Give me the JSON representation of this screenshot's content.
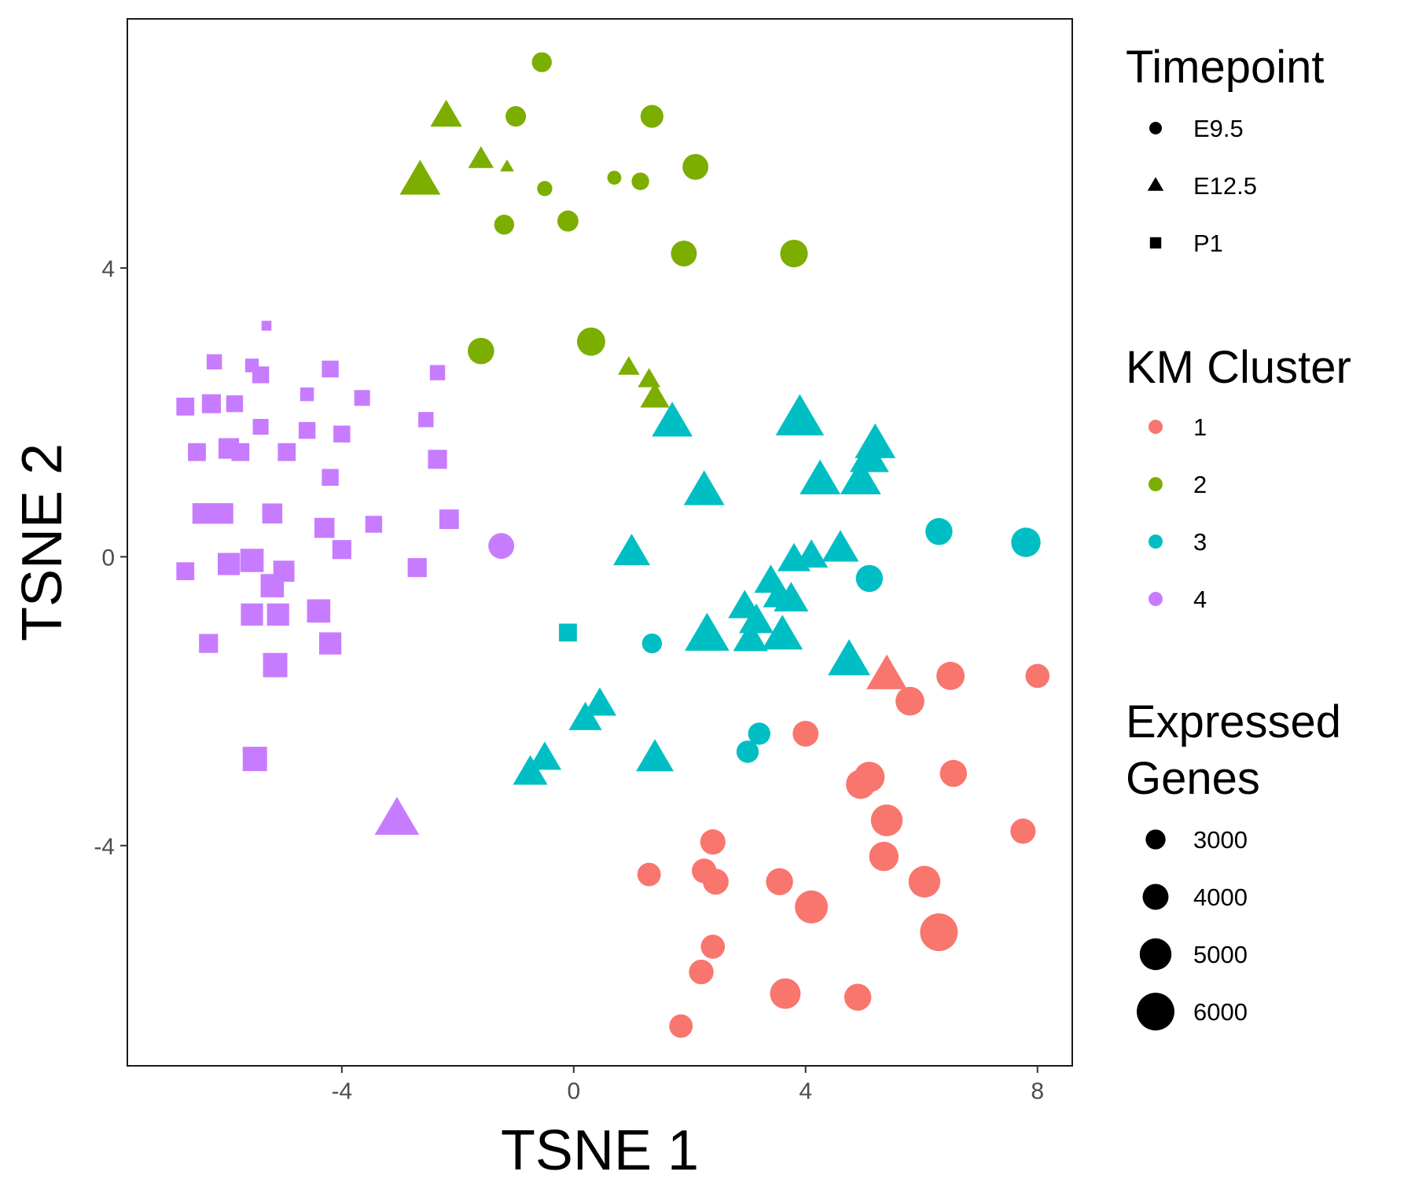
{
  "chart_data": {
    "type": "scatter",
    "title": "",
    "xlabel": "TSNE 1",
    "ylabel": "TSNE 2",
    "xlim": [
      -7.7,
      8.6
    ],
    "ylim": [
      -7.05,
      7.45
    ],
    "x_ticks": [
      -4,
      0,
      4,
      8
    ],
    "x_tick_labels": [
      "-4",
      "0",
      "4",
      "8"
    ],
    "y_ticks": [
      -4,
      0,
      4
    ],
    "y_tick_labels": [
      "-4",
      "0",
      "4"
    ],
    "grid": false,
    "legend_placement": "right",
    "legends": {
      "shape": {
        "title": "Timepoint",
        "items": [
          {
            "label": "E9.5",
            "shape": "circle"
          },
          {
            "label": "E12.5",
            "shape": "triangle"
          },
          {
            "label": "P1",
            "shape": "square"
          }
        ]
      },
      "color": {
        "title": "KM Cluster",
        "items": [
          {
            "label": "1",
            "color": "#F8766D"
          },
          {
            "label": "2",
            "color": "#7CAE00"
          },
          {
            "label": "3",
            "color": "#00BFC4"
          },
          {
            "label": "4",
            "color": "#C77CFF"
          }
        ]
      },
      "size": {
        "title_lines": [
          "Expressed",
          "Genes"
        ],
        "items": [
          {
            "label": "3000",
            "value": 3000
          },
          {
            "label": "4000",
            "value": 4000
          },
          {
            "label": "5000",
            "value": 5000
          },
          {
            "label": "6000",
            "value": 6000
          }
        ]
      }
    },
    "points": [
      {
        "x": -0.55,
        "y": 6.85,
        "cluster": "2",
        "timepoint": "E9.5",
        "genes": 3000
      },
      {
        "x": -1.0,
        "y": 6.1,
        "cluster": "2",
        "timepoint": "E9.5",
        "genes": 3100
      },
      {
        "x": 1.35,
        "y": 6.1,
        "cluster": "2",
        "timepoint": "E9.5",
        "genes": 3500
      },
      {
        "x": -2.2,
        "y": 6.1,
        "cluster": "2",
        "timepoint": "E12.5",
        "genes": 3800
      },
      {
        "x": -1.6,
        "y": 5.5,
        "cluster": "2",
        "timepoint": "E12.5",
        "genes": 3000
      },
      {
        "x": -1.15,
        "y": 5.4,
        "cluster": "2",
        "timepoint": "E12.5",
        "genes": 1500
      },
      {
        "x": -2.65,
        "y": 5.2,
        "cluster": "2",
        "timepoint": "E12.5",
        "genes": 5000
      },
      {
        "x": 2.1,
        "y": 5.4,
        "cluster": "2",
        "timepoint": "E9.5",
        "genes": 4000
      },
      {
        "x": -0.5,
        "y": 5.1,
        "cluster": "2",
        "timepoint": "E9.5",
        "genes": 2200
      },
      {
        "x": 0.7,
        "y": 5.25,
        "cluster": "2",
        "timepoint": "E9.5",
        "genes": 2000
      },
      {
        "x": 1.15,
        "y": 5.2,
        "cluster": "2",
        "timepoint": "E9.5",
        "genes": 2600
      },
      {
        "x": -1.2,
        "y": 4.6,
        "cluster": "2",
        "timepoint": "E9.5",
        "genes": 3000
      },
      {
        "x": -0.1,
        "y": 4.65,
        "cluster": "2",
        "timepoint": "E9.5",
        "genes": 3200
      },
      {
        "x": 1.9,
        "y": 4.2,
        "cluster": "2",
        "timepoint": "E9.5",
        "genes": 4000
      },
      {
        "x": 3.8,
        "y": 4.2,
        "cluster": "2",
        "timepoint": "E9.5",
        "genes": 4300
      },
      {
        "x": -1.6,
        "y": 2.85,
        "cluster": "2",
        "timepoint": "E9.5",
        "genes": 4100
      },
      {
        "x": 0.3,
        "y": 2.98,
        "cluster": "2",
        "timepoint": "E9.5",
        "genes": 4400
      },
      {
        "x": 0.95,
        "y": 2.62,
        "cluster": "2",
        "timepoint": "E12.5",
        "genes": 2500
      },
      {
        "x": 1.3,
        "y": 2.45,
        "cluster": "2",
        "timepoint": "E12.5",
        "genes": 2600
      },
      {
        "x": 1.4,
        "y": 2.2,
        "cluster": "2",
        "timepoint": "E12.5",
        "genes": 3500
      },
      {
        "x": -5.3,
        "y": 3.2,
        "cluster": "4",
        "timepoint": "P1",
        "genes": 1500
      },
      {
        "x": -6.2,
        "y": 2.7,
        "cluster": "4",
        "timepoint": "P1",
        "genes": 2500
      },
      {
        "x": -5.55,
        "y": 2.65,
        "cluster": "4",
        "timepoint": "P1",
        "genes": 2200
      },
      {
        "x": -5.4,
        "y": 2.52,
        "cluster": "4",
        "timepoint": "P1",
        "genes": 2800
      },
      {
        "x": -4.2,
        "y": 2.6,
        "cluster": "4",
        "timepoint": "P1",
        "genes": 2800
      },
      {
        "x": -2.35,
        "y": 2.55,
        "cluster": "4",
        "timepoint": "P1",
        "genes": 2500
      },
      {
        "x": -4.6,
        "y": 2.25,
        "cluster": "4",
        "timepoint": "P1",
        "genes": 2200
      },
      {
        "x": -3.65,
        "y": 2.2,
        "cluster": "4",
        "timepoint": "P1",
        "genes": 2600
      },
      {
        "x": -6.7,
        "y": 2.08,
        "cluster": "4",
        "timepoint": "P1",
        "genes": 3000
      },
      {
        "x": -6.25,
        "y": 2.12,
        "cluster": "4",
        "timepoint": "P1",
        "genes": 3200
      },
      {
        "x": -5.85,
        "y": 2.12,
        "cluster": "4",
        "timepoint": "P1",
        "genes": 2800
      },
      {
        "x": -2.55,
        "y": 1.9,
        "cluster": "4",
        "timepoint": "P1",
        "genes": 2500
      },
      {
        "x": -5.4,
        "y": 1.8,
        "cluster": "4",
        "timepoint": "P1",
        "genes": 2600
      },
      {
        "x": -4.6,
        "y": 1.75,
        "cluster": "4",
        "timepoint": "P1",
        "genes": 2800
      },
      {
        "x": -4.0,
        "y": 1.7,
        "cluster": "4",
        "timepoint": "P1",
        "genes": 2800
      },
      {
        "x": -6.5,
        "y": 1.45,
        "cluster": "4",
        "timepoint": "P1",
        "genes": 3000
      },
      {
        "x": -5.95,
        "y": 1.5,
        "cluster": "4",
        "timepoint": "P1",
        "genes": 3500
      },
      {
        "x": -5.75,
        "y": 1.45,
        "cluster": "4",
        "timepoint": "P1",
        "genes": 3000
      },
      {
        "x": -4.95,
        "y": 1.45,
        "cluster": "4",
        "timepoint": "P1",
        "genes": 3000
      },
      {
        "x": -2.35,
        "y": 1.35,
        "cluster": "4",
        "timepoint": "P1",
        "genes": 3200
      },
      {
        "x": -4.2,
        "y": 1.1,
        "cluster": "4",
        "timepoint": "P1",
        "genes": 2800
      },
      {
        "x": -6.4,
        "y": 0.6,
        "cluster": "4",
        "timepoint": "P1",
        "genes": 3500
      },
      {
        "x": -6.05,
        "y": 0.6,
        "cluster": "4",
        "timepoint": "P1",
        "genes": 3500
      },
      {
        "x": -5.2,
        "y": 0.6,
        "cluster": "4",
        "timepoint": "P1",
        "genes": 3400
      },
      {
        "x": -2.15,
        "y": 0.52,
        "cluster": "4",
        "timepoint": "P1",
        "genes": 3300
      },
      {
        "x": -3.45,
        "y": 0.45,
        "cluster": "4",
        "timepoint": "P1",
        "genes": 2800
      },
      {
        "x": -4.3,
        "y": 0.4,
        "cluster": "4",
        "timepoint": "P1",
        "genes": 3400
      },
      {
        "x": -4.0,
        "y": 0.1,
        "cluster": "4",
        "timepoint": "P1",
        "genes": 3200
      },
      {
        "x": -6.7,
        "y": -0.2,
        "cluster": "4",
        "timepoint": "P1",
        "genes": 3000
      },
      {
        "x": -5.95,
        "y": -0.1,
        "cluster": "4",
        "timepoint": "P1",
        "genes": 3800
      },
      {
        "x": -5.55,
        "y": -0.05,
        "cluster": "4",
        "timepoint": "P1",
        "genes": 4000
      },
      {
        "x": -5.0,
        "y": -0.2,
        "cluster": "4",
        "timepoint": "P1",
        "genes": 3600
      },
      {
        "x": -5.2,
        "y": -0.4,
        "cluster": "4",
        "timepoint": "P1",
        "genes": 4000
      },
      {
        "x": -2.7,
        "y": -0.15,
        "cluster": "4",
        "timepoint": "P1",
        "genes": 3200
      },
      {
        "x": -5.55,
        "y": -0.8,
        "cluster": "4",
        "timepoint": "P1",
        "genes": 3800
      },
      {
        "x": -5.1,
        "y": -0.8,
        "cluster": "4",
        "timepoint": "P1",
        "genes": 3800
      },
      {
        "x": -4.4,
        "y": -0.75,
        "cluster": "4",
        "timepoint": "P1",
        "genes": 4000
      },
      {
        "x": -6.3,
        "y": -1.2,
        "cluster": "4",
        "timepoint": "P1",
        "genes": 3200
      },
      {
        "x": -4.2,
        "y": -1.2,
        "cluster": "4",
        "timepoint": "P1",
        "genes": 3800
      },
      {
        "x": -5.15,
        "y": -1.5,
        "cluster": "4",
        "timepoint": "P1",
        "genes": 4200
      },
      {
        "x": -5.5,
        "y": -2.8,
        "cluster": "4",
        "timepoint": "P1",
        "genes": 4200
      },
      {
        "x": -1.25,
        "y": 0.15,
        "cluster": "4",
        "timepoint": "E9.5",
        "genes": 4000
      },
      {
        "x": -3.05,
        "y": -3.65,
        "cluster": "4",
        "timepoint": "E12.5",
        "genes": 5500
      },
      {
        "x": 1.7,
        "y": 1.85,
        "cluster": "3",
        "timepoint": "E12.5",
        "genes": 5000
      },
      {
        "x": 3.9,
        "y": 1.9,
        "cluster": "3",
        "timepoint": "E12.5",
        "genes": 6000
      },
      {
        "x": 5.2,
        "y": 1.55,
        "cluster": "3",
        "timepoint": "E12.5",
        "genes": 5000
      },
      {
        "x": 5.1,
        "y": 1.35,
        "cluster": "3",
        "timepoint": "E12.5",
        "genes": 4800
      },
      {
        "x": 4.25,
        "y": 1.05,
        "cluster": "3",
        "timepoint": "E12.5",
        "genes": 5000
      },
      {
        "x": 4.95,
        "y": 1.05,
        "cluster": "3",
        "timepoint": "E12.5",
        "genes": 5000
      },
      {
        "x": 2.25,
        "y": 0.9,
        "cluster": "3",
        "timepoint": "E12.5",
        "genes": 5000
      },
      {
        "x": 6.3,
        "y": 0.35,
        "cluster": "3",
        "timepoint": "E9.5",
        "genes": 4200
      },
      {
        "x": 7.8,
        "y": 0.2,
        "cluster": "3",
        "timepoint": "E9.5",
        "genes": 4600
      },
      {
        "x": 1.0,
        "y": 0.05,
        "cluster": "3",
        "timepoint": "E12.5",
        "genes": 4500
      },
      {
        "x": 4.6,
        "y": 0.1,
        "cluster": "3",
        "timepoint": "E12.5",
        "genes": 4500
      },
      {
        "x": 4.1,
        "y": 0.0,
        "cluster": "3",
        "timepoint": "E12.5",
        "genes": 4000
      },
      {
        "x": 3.8,
        "y": -0.05,
        "cluster": "3",
        "timepoint": "E12.5",
        "genes": 4000
      },
      {
        "x": 5.1,
        "y": -0.3,
        "cluster": "3",
        "timepoint": "E9.5",
        "genes": 4200
      },
      {
        "x": 3.4,
        "y": -0.35,
        "cluster": "3",
        "timepoint": "E12.5",
        "genes": 4000
      },
      {
        "x": 3.55,
        "y": -0.55,
        "cluster": "3",
        "timepoint": "E12.5",
        "genes": 4000
      },
      {
        "x": 3.75,
        "y": -0.6,
        "cluster": "3",
        "timepoint": "E12.5",
        "genes": 4200
      },
      {
        "x": 2.95,
        "y": -0.7,
        "cluster": "3",
        "timepoint": "E12.5",
        "genes": 4000
      },
      {
        "x": 3.15,
        "y": -0.9,
        "cluster": "3",
        "timepoint": "E12.5",
        "genes": 4200
      },
      {
        "x": 2.3,
        "y": -1.1,
        "cluster": "3",
        "timepoint": "E12.5",
        "genes": 5500
      },
      {
        "x": 3.05,
        "y": -1.15,
        "cluster": "3",
        "timepoint": "E12.5",
        "genes": 4200
      },
      {
        "x": 3.6,
        "y": -1.1,
        "cluster": "3",
        "timepoint": "E12.5",
        "genes": 5000
      },
      {
        "x": 4.75,
        "y": -1.45,
        "cluster": "3",
        "timepoint": "E12.5",
        "genes": 5200
      },
      {
        "x": -0.1,
        "y": -1.05,
        "cluster": "3",
        "timepoint": "P1",
        "genes": 3000
      },
      {
        "x": 1.35,
        "y": -1.2,
        "cluster": "3",
        "timepoint": "E9.5",
        "genes": 3000
      },
      {
        "x": 0.45,
        "y": -2.05,
        "cluster": "3",
        "timepoint": "E12.5",
        "genes": 4000
      },
      {
        "x": 0.2,
        "y": -2.25,
        "cluster": "3",
        "timepoint": "E12.5",
        "genes": 4000
      },
      {
        "x": -0.5,
        "y": -2.8,
        "cluster": "3",
        "timepoint": "E12.5",
        "genes": 4000
      },
      {
        "x": -0.75,
        "y": -3.0,
        "cluster": "3",
        "timepoint": "E12.5",
        "genes": 4200
      },
      {
        "x": 1.4,
        "y": -2.8,
        "cluster": "3",
        "timepoint": "E12.5",
        "genes": 4600
      },
      {
        "x": 3.2,
        "y": -2.45,
        "cluster": "3",
        "timepoint": "E9.5",
        "genes": 3400
      },
      {
        "x": 3.0,
        "y": -2.7,
        "cluster": "3",
        "timepoint": "E9.5",
        "genes": 3400
      },
      {
        "x": 5.4,
        "y": -1.65,
        "cluster": "1",
        "timepoint": "E12.5",
        "genes": 5000
      },
      {
        "x": 6.5,
        "y": -1.65,
        "cluster": "1",
        "timepoint": "E9.5",
        "genes": 4400
      },
      {
        "x": 8.0,
        "y": -1.65,
        "cluster": "1",
        "timepoint": "E9.5",
        "genes": 3700
      },
      {
        "x": 5.8,
        "y": -2.0,
        "cluster": "1",
        "timepoint": "E9.5",
        "genes": 4500
      },
      {
        "x": 4.0,
        "y": -2.45,
        "cluster": "1",
        "timepoint": "E9.5",
        "genes": 4000
      },
      {
        "x": 5.1,
        "y": -3.05,
        "cluster": "1",
        "timepoint": "E9.5",
        "genes": 4800
      },
      {
        "x": 4.95,
        "y": -3.15,
        "cluster": "1",
        "timepoint": "E9.5",
        "genes": 4600
      },
      {
        "x": 6.55,
        "y": -3.0,
        "cluster": "1",
        "timepoint": "E9.5",
        "genes": 4200
      },
      {
        "x": 5.4,
        "y": -3.65,
        "cluster": "1",
        "timepoint": "E9.5",
        "genes": 5000
      },
      {
        "x": 7.75,
        "y": -3.8,
        "cluster": "1",
        "timepoint": "E9.5",
        "genes": 3900
      },
      {
        "x": 2.4,
        "y": -3.95,
        "cluster": "1",
        "timepoint": "E9.5",
        "genes": 3900
      },
      {
        "x": 5.35,
        "y": -4.15,
        "cluster": "1",
        "timepoint": "E9.5",
        "genes": 4600
      },
      {
        "x": 1.3,
        "y": -4.4,
        "cluster": "1",
        "timepoint": "E9.5",
        "genes": 3600
      },
      {
        "x": 2.25,
        "y": -4.35,
        "cluster": "1",
        "timepoint": "E9.5",
        "genes": 3800
      },
      {
        "x": 2.45,
        "y": -4.5,
        "cluster": "1",
        "timepoint": "E9.5",
        "genes": 4000
      },
      {
        "x": 3.55,
        "y": -4.5,
        "cluster": "1",
        "timepoint": "E9.5",
        "genes": 4200
      },
      {
        "x": 6.05,
        "y": -4.5,
        "cluster": "1",
        "timepoint": "E9.5",
        "genes": 5000
      },
      {
        "x": 4.1,
        "y": -4.85,
        "cluster": "1",
        "timepoint": "E9.5",
        "genes": 5200
      },
      {
        "x": 6.3,
        "y": -5.2,
        "cluster": "1",
        "timepoint": "E9.5",
        "genes": 6000
      },
      {
        "x": 2.4,
        "y": -5.4,
        "cluster": "1",
        "timepoint": "E9.5",
        "genes": 3700
      },
      {
        "x": 2.2,
        "y": -5.75,
        "cluster": "1",
        "timepoint": "E9.5",
        "genes": 3800
      },
      {
        "x": 3.65,
        "y": -6.05,
        "cluster": "1",
        "timepoint": "E9.5",
        "genes": 4800
      },
      {
        "x": 4.9,
        "y": -6.1,
        "cluster": "1",
        "timepoint": "E9.5",
        "genes": 4200
      },
      {
        "x": 1.85,
        "y": -6.5,
        "cluster": "1",
        "timepoint": "E9.5",
        "genes": 3600
      }
    ]
  }
}
